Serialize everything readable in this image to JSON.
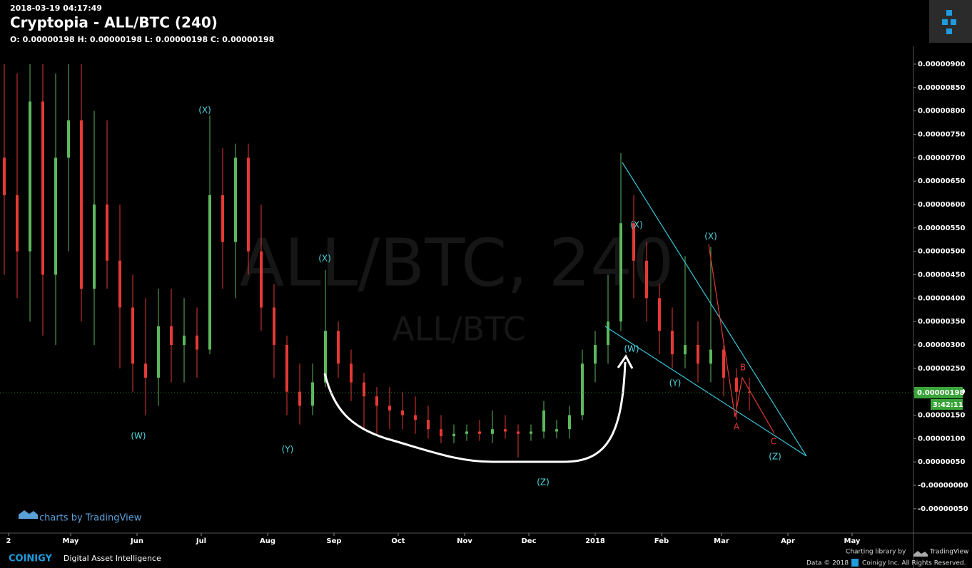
{
  "header": {
    "timestamp": "2018-03-19 04:17:49",
    "title": "Cryptopia - ALL/BTC (240)",
    "ohlc": "O: 0.00000198 H: 0.00000198 L: 0.00000198 C: 0.00000198"
  },
  "watermark": {
    "main": "ALL/BTC, 240",
    "sub": "ALL/BTC"
  },
  "chart_data": {
    "type": "candlestick",
    "x": [
      -2,
      4,
      10,
      16,
      22,
      28,
      34,
      40,
      46,
      52,
      58,
      64,
      70,
      76,
      82,
      88,
      94,
      100,
      106,
      112,
      118,
      124,
      130,
      136,
      142,
      148,
      154,
      160,
      166,
      172,
      178,
      184,
      190,
      196,
      202,
      208,
      214,
      220,
      226,
      232,
      238,
      244,
      250,
      256,
      262,
      268,
      274,
      280,
      286,
      292,
      298,
      304,
      310,
      316,
      322,
      328,
      334,
      340,
      346
    ],
    "open": [
      7e-06,
      6.2e-06,
      5e-06,
      8.2e-06,
      4.5e-06,
      7e-06,
      7.8e-06,
      4.2e-06,
      6e-06,
      4.8e-06,
      3.8e-06,
      2.6e-06,
      2.3e-06,
      3.4e-06,
      3e-06,
      3.2e-06,
      2.9e-06,
      6.2e-06,
      5.2e-06,
      7e-06,
      5e-06,
      3.8e-06,
      3e-06,
      2e-06,
      1.7e-06,
      2.2e-06,
      3.3e-06,
      2.6e-06,
      2.2e-06,
      1.9e-06,
      1.7e-06,
      1.6e-06,
      1.5e-06,
      1.4e-06,
      1.2e-06,
      1.05e-06,
      1.1e-06,
      1.15e-06,
      1.1e-06,
      1.2e-06,
      1.15e-06,
      1.1e-06,
      1.15e-06,
      1.15e-06,
      1.2e-06,
      1.5e-06,
      2.6e-06,
      3e-06,
      3.5e-06,
      5.6e-06,
      4.8e-06,
      4e-06,
      3.3e-06,
      2.8e-06,
      3e-06,
      2.6e-06,
      2.9e-06,
      2.3e-06,
      2e-06
    ],
    "high": [
      9e-06,
      8.8e-06,
      9e-06,
      9e-06,
      8.8e-06,
      9e-06,
      9e-06,
      8e-06,
      7.8e-06,
      6e-06,
      4.5e-06,
      4e-06,
      4.2e-06,
      4.2e-06,
      4e-06,
      3.8e-06,
      7.9e-06,
      7.2e-06,
      7.3e-06,
      7.3e-06,
      6e-06,
      4.3e-06,
      3.2e-06,
      2.6e-06,
      2.6e-06,
      4.6e-06,
      3.5e-06,
      2.9e-06,
      2.4e-06,
      2.1e-06,
      2.1e-06,
      2e-06,
      1.9e-06,
      1.7e-06,
      1.5e-06,
      1.3e-06,
      1.3e-06,
      1.4e-06,
      1.6e-06,
      1.5e-06,
      1.3e-06,
      1.3e-06,
      1.8e-06,
      1.4e-06,
      1.7e-06,
      2.9e-06,
      3.3e-06,
      4.5e-06,
      7.1e-06,
      6.2e-06,
      5.2e-06,
      4.3e-06,
      3.8e-06,
      4.9e-06,
      3.5e-06,
      5.1e-06,
      3e-06,
      2.5e-06,
      2.3e-06
    ],
    "low": [
      4.5e-06,
      4e-06,
      3.5e-06,
      3.2e-06,
      3e-06,
      5e-06,
      3.5e-06,
      3e-06,
      4.2e-06,
      2.5e-06,
      2e-06,
      1.5e-06,
      1.7e-06,
      2.2e-06,
      2.2e-06,
      2.3e-06,
      2.8e-06,
      4.2e-06,
      4e-06,
      4.5e-06,
      3.3e-06,
      2.3e-06,
      1.5e-06,
      1.3e-06,
      1.5e-06,
      2.1e-06,
      2.3e-06,
      1.8e-06,
      1.2e-06,
      1.1e-06,
      1.2e-06,
      1.2e-06,
      1.1e-06,
      1e-06,
      9e-07,
      9e-07,
      9.5e-07,
      9.5e-07,
      9e-07,
      1e-06,
      6e-07,
      9.5e-07,
      1e-06,
      1e-06,
      1e-06,
      1.4e-06,
      2.2e-06,
      2.6e-06,
      3.3e-06,
      4e-06,
      3.5e-06,
      2.8e-06,
      2.5e-06,
      2.5e-06,
      2.2e-06,
      2.2e-06,
      1.9e-06,
      1.4e-06,
      1.6e-06
    ],
    "close": [
      6.2e-06,
      5e-06,
      8.2e-06,
      4.5e-06,
      7e-06,
      7.8e-06,
      4.2e-06,
      6e-06,
      4.8e-06,
      3.8e-06,
      2.6e-06,
      2.3e-06,
      3.4e-06,
      3e-06,
      3.2e-06,
      2.9e-06,
      6.2e-06,
      5.2e-06,
      7e-06,
      5e-06,
      3.8e-06,
      3e-06,
      2e-06,
      1.7e-06,
      2.2e-06,
      3.3e-06,
      2.6e-06,
      2.2e-06,
      1.9e-06,
      1.7e-06,
      1.6e-06,
      1.5e-06,
      1.4e-06,
      1.2e-06,
      1.05e-06,
      1.1e-06,
      1.15e-06,
      1.1e-06,
      1.2e-06,
      1.15e-06,
      1.1e-06,
      1.15e-06,
      1.6e-06,
      1.2e-06,
      1.5e-06,
      2.6e-06,
      3e-06,
      3.5e-06,
      5.6e-06,
      4.8e-06,
      4e-06,
      3.3e-06,
      2.8e-06,
      3e-06,
      2.6e-06,
      2.9e-06,
      2.3e-06,
      2e-06,
      1.98e-06
    ],
    "up_color": "#5cb85c",
    "down_color": "#e53935",
    "xlim": [
      -4,
      422.67
    ],
    "xticks": [
      {
        "value": 0,
        "label": "2"
      },
      {
        "value": 29,
        "label": "May"
      },
      {
        "value": 60,
        "label": "Jun"
      },
      {
        "value": 90,
        "label": "Jul"
      },
      {
        "value": 121,
        "label": "Aug"
      },
      {
        "value": 152,
        "label": "Sep"
      },
      {
        "value": 182,
        "label": "Oct"
      },
      {
        "value": 213,
        "label": "Nov"
      },
      {
        "value": 243,
        "label": "Dec"
      },
      {
        "value": 274,
        "label": 2018
      },
      {
        "value": 305,
        "label": "Feb"
      },
      {
        "value": 333,
        "label": "Mar"
      },
      {
        "value": 364,
        "label": "Apr"
      },
      {
        "value": 394,
        "label": "May"
      }
    ],
    "ylim": [
      -1.02e-06,
      9.38e-06
    ],
    "yticks": [
      {
        "value": 9e-06,
        "label": "0.00000900"
      },
      {
        "value": 8.5e-06,
        "label": "0.00000850"
      },
      {
        "value": 8e-06,
        "label": "0.00000800"
      },
      {
        "value": 7.5e-06,
        "label": "0.00000750"
      },
      {
        "value": 7e-06,
        "label": "0.00000700"
      },
      {
        "value": 6.5e-06,
        "label": "0.00000650"
      },
      {
        "value": 6e-06,
        "label": "0.00000600"
      },
      {
        "value": 5.5e-06,
        "label": "0.00000550"
      },
      {
        "value": 5e-06,
        "label": "0.00000500"
      },
      {
        "value": 4.5e-06,
        "label": "0.00000450"
      },
      {
        "value": 4e-06,
        "label": "0.00000400"
      },
      {
        "value": 3.5e-06,
        "label": "0.00000350"
      },
      {
        "value": 3e-06,
        "label": "0.00000300"
      },
      {
        "value": 2.5e-06,
        "label": "0.00000250"
      },
      {
        "value": 2e-06,
        "label": "0.00000200"
      },
      {
        "value": 1.5e-06,
        "label": "0.00000150"
      },
      {
        "value": 1e-06,
        "label": "0.00000100"
      },
      {
        "value": 5e-07,
        "label": "0.00000050"
      },
      {
        "value": 0,
        "label": "-0.00000000"
      },
      {
        "value": -5e-07,
        "label": "-0.00000050"
      }
    ],
    "last_price": {
      "value": 1.98e-06,
      "label": "0.00000198"
    },
    "countdown": "3:42:11",
    "annotations": [
      "(X)",
      "(W)",
      "(Y)",
      "(X)",
      "(Z)",
      "(X)",
      "(W)",
      "(Y)",
      "(X)",
      "(Z)",
      "A",
      "B",
      "C"
    ]
  },
  "footer": {
    "tv": "charts by TradingView",
    "brand": "COINIGY",
    "tagline": "Digital Asset Intelligence",
    "charting": "Charting library by",
    "tv_name": "TradingView",
    "data": "Data © 2018",
    "rights": "Coinigy Inc. All Rights Reserved."
  }
}
